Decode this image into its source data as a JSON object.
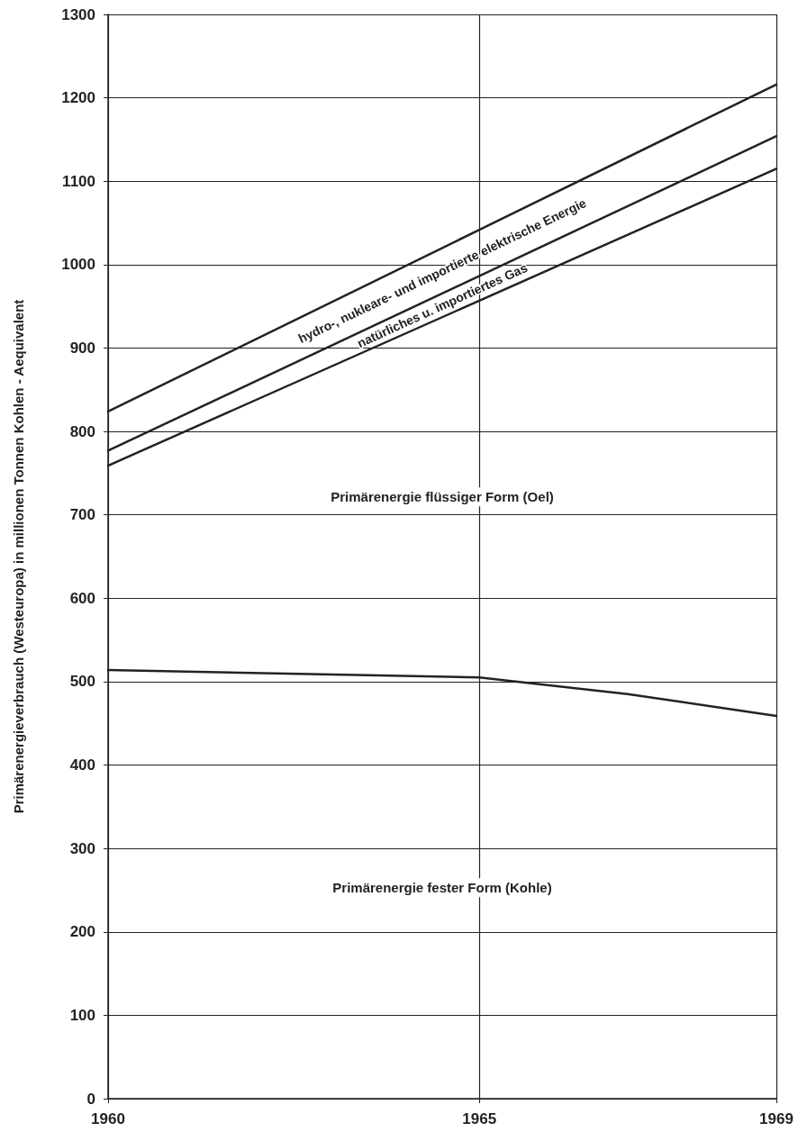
{
  "chart_data": {
    "type": "line",
    "ylabel": "Primärenergieverbrauch (Westeuropa) in millionen Tonnen Kohlen - Aequivalent",
    "series": [
      {
        "color": "#222222",
        "x": [
          1960,
          1969
        ],
        "values": [
          824,
          1216
        ]
      },
      {
        "color": "#222222",
        "x": [
          1960,
          1969
        ],
        "values": [
          777,
          1154
        ]
      },
      {
        "color": "#222222",
        "x": [
          1960,
          1969
        ],
        "values": [
          759,
          1115
        ]
      },
      {
        "color": "#222222",
        "x": [
          1960,
          1965,
          1967,
          1969
        ],
        "values": [
          514,
          505,
          485,
          459
        ]
      }
    ],
    "annotations": [
      "hydro-, nukleare- und importierte elektrische Energie",
      "natürliches u. importiertes Gas",
      "Primärenergie flüssiger Form (Oel)",
      "Primärenergie fester Form (Kohle)"
    ],
    "xlim": [
      1960,
      1969
    ],
    "xticks": [
      1960,
      1965,
      1969
    ],
    "ylim": [
      0,
      1300
    ],
    "yticks": [
      0,
      100,
      200,
      300,
      400,
      500,
      600,
      700,
      800,
      900,
      1000,
      1100,
      1200,
      1300
    ],
    "grid": true,
    "marker": "none",
    "line_style": "solid"
  }
}
